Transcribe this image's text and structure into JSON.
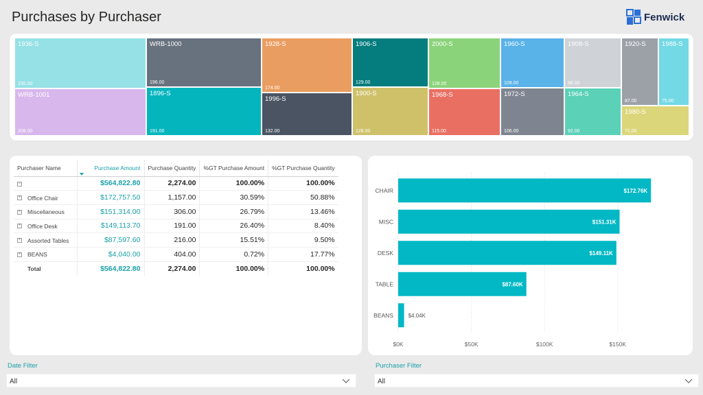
{
  "header": {
    "title": "Purchases by Purchaser",
    "logo_text": "Fenwick"
  },
  "colors": {
    "accent": "#1aa0a8",
    "bar": "#01b8c4"
  },
  "treemap": [
    {
      "label": "1936-S",
      "value": "235.00",
      "color": "#95e1e6"
    },
    {
      "label": "WRB-1001",
      "value": "208.00",
      "color": "#d8b7ec"
    },
    {
      "label": "WRB-1000",
      "value": "196.00",
      "color": "#68717e"
    },
    {
      "label": "1896-S",
      "value": "191.00",
      "color": "#04b5be"
    },
    {
      "label": "1928-S",
      "value": "174.00",
      "color": "#ea9d61"
    },
    {
      "label": "1996-S",
      "value": "132.00",
      "color": "#4a5463"
    },
    {
      "label": "1906-S",
      "value": "129.00",
      "color": "#057c7e"
    },
    {
      "label": "1900-S",
      "value": "128.00",
      "color": "#cfc16a"
    },
    {
      "label": "2000-S",
      "value": "128.00",
      "color": "#8bd37a"
    },
    {
      "label": "1968-S",
      "value": "115.00",
      "color": "#ea6f63"
    },
    {
      "label": "1960-S",
      "value": "109.00",
      "color": "#59b2e8"
    },
    {
      "label": "1972-S",
      "value": "106.00",
      "color": "#7e8590"
    },
    {
      "label": "1908-S",
      "value": "98.00",
      "color": "#cfd2d6"
    },
    {
      "label": "1964-S",
      "value": "92.00",
      "color": "#5bd1b8"
    },
    {
      "label": "1920-S",
      "value": "87.00",
      "color": "#9ca1a8"
    },
    {
      "label": "1988-S",
      "value": "75.00",
      "color": "#73d9e5"
    },
    {
      "label": "1980-S",
      "value": "71.00",
      "color": "#dcd67b"
    }
  ],
  "table": {
    "columns": [
      "Purchaser Name",
      "Purchase Amount",
      "Purchase Quantity",
      "%GT Purchase Amount",
      "%GT Purchase Quantity"
    ],
    "group_row": {
      "amount": "$564,822.80",
      "quantity": "2,274.00",
      "pct_amount": "100.00%",
      "pct_quantity": "100.00%"
    },
    "rows": [
      {
        "name": "Office Chair",
        "amount": "$172,757.50",
        "quantity": "1,157.00",
        "pct_amount": "30.59%",
        "pct_quantity": "50.88%"
      },
      {
        "name": "Miscellaneous",
        "amount": "$151,314.00",
        "quantity": "306.00",
        "pct_amount": "26.79%",
        "pct_quantity": "13.46%"
      },
      {
        "name": "Office Desk",
        "amount": "$149,113.70",
        "quantity": "191.00",
        "pct_amount": "26.40%",
        "pct_quantity": "8.40%"
      },
      {
        "name": "Assorted Tables",
        "amount": "$87,597.60",
        "quantity": "216.00",
        "pct_amount": "15.51%",
        "pct_quantity": "9.50%"
      },
      {
        "name": "BEANS",
        "amount": "$4,040.00",
        "quantity": "404.00",
        "pct_amount": "0.72%",
        "pct_quantity": "17.77%"
      }
    ],
    "total_row": {
      "name": "Total",
      "amount": "$564,822.80",
      "quantity": "2,274.00",
      "pct_amount": "100.00%",
      "pct_quantity": "100.00%"
    }
  },
  "chart_data": {
    "type": "bar",
    "orientation": "horizontal",
    "categories": [
      "CHAIR",
      "MISC",
      "DESK",
      "TABLE",
      "BEANS"
    ],
    "values": [
      172.76,
      151.31,
      149.11,
      87.6,
      4.04
    ],
    "value_unit": "K",
    "data_labels": [
      "$172.76K",
      "$151.31K",
      "$149.11K",
      "$87.60K",
      "$4.04K"
    ],
    "x_ticks": [
      0,
      50,
      100,
      150
    ],
    "x_tick_labels": [
      "$0K",
      "$50K",
      "$100K",
      "$150K"
    ],
    "xlim": [
      0,
      175
    ],
    "grid": true
  },
  "filters": {
    "date": {
      "label": "Date Filter",
      "value": "All"
    },
    "purchaser": {
      "label": "Purchaser Filter",
      "value": "All"
    }
  }
}
